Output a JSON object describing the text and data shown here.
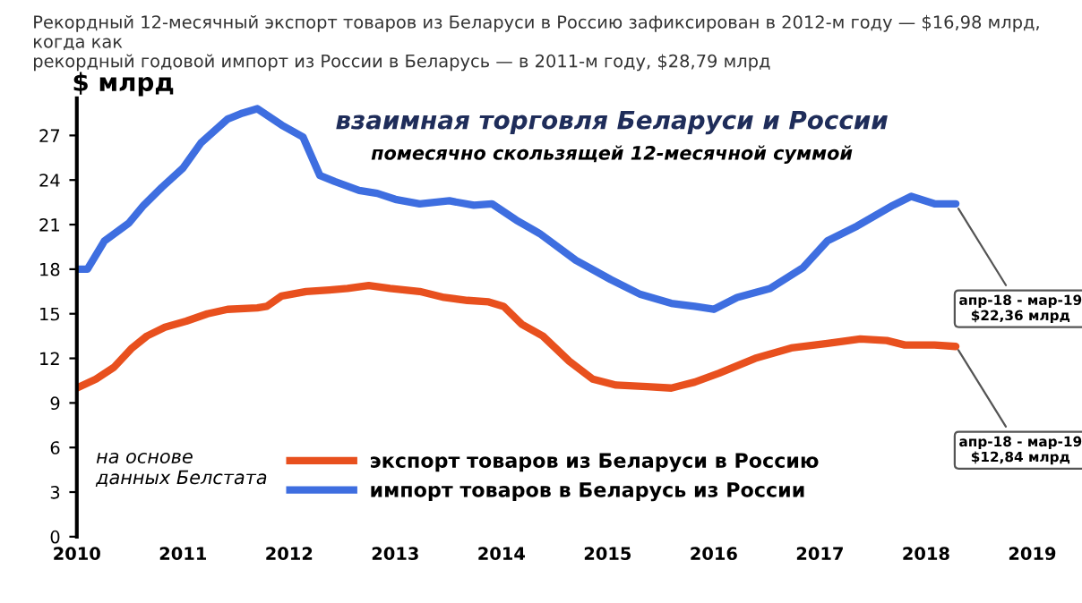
{
  "chart_data": {
    "type": "line",
    "title": "взаимная торговля Беларуси и России",
    "subtitle": "помесячно скользящей 12-месячной суммой",
    "ylabel": "$ млрд",
    "xlim": [
      2010,
      2019
    ],
    "xticks": [
      2010,
      2011,
      2012,
      2013,
      2014,
      2015,
      2016,
      2017,
      2018,
      2019
    ],
    "ylim": [
      0,
      29.5
    ],
    "yticks": [
      0,
      3,
      6,
      9,
      12,
      15,
      18,
      21,
      24,
      27
    ],
    "grid": false,
    "legend": "bottom",
    "marker": "none",
    "line_style": "solid",
    "series": [
      {
        "name": "экспорт товаров из Беларуси в Россию",
        "color": "#e8501e",
        "x": [
          2010.0,
          2010.18,
          2010.35,
          2010.52,
          2010.66,
          2010.83,
          2011.03,
          2011.23,
          2011.42,
          2011.7,
          2011.79,
          2011.93,
          2012.16,
          2012.38,
          2012.55,
          2012.75,
          2012.95,
          2013.23,
          2013.46,
          2013.68,
          2013.88,
          2014.02,
          2014.19,
          2014.39,
          2014.64,
          2014.86,
          2015.08,
          2015.37,
          2015.6,
          2015.82,
          2016.05,
          2016.39,
          2016.73,
          2017.07,
          2017.38,
          2017.63,
          2017.8,
          2018.08,
          2018.28
        ],
        "values": [
          10.0,
          10.6,
          11.4,
          12.7,
          13.5,
          14.1,
          14.5,
          15.0,
          15.3,
          15.4,
          15.5,
          16.2,
          16.5,
          16.6,
          16.7,
          16.9,
          16.7,
          16.5,
          16.1,
          15.9,
          15.8,
          15.5,
          14.3,
          13.5,
          11.8,
          10.6,
          10.2,
          10.1,
          10.0,
          10.4,
          11.0,
          12.0,
          12.7,
          13.0,
          13.3,
          13.2,
          12.9,
          12.9,
          12.8
        ]
      },
      {
        "name": "импорт товаров в Беларусь из России",
        "color": "#3e6ee0",
        "x": [
          2010.0,
          2010.1,
          2010.26,
          2010.49,
          2010.63,
          2010.8,
          2011.0,
          2011.17,
          2011.42,
          2011.56,
          2011.7,
          2011.93,
          2012.13,
          2012.29,
          2012.43,
          2012.66,
          2012.83,
          2013.0,
          2013.23,
          2013.51,
          2013.74,
          2013.91,
          2014.14,
          2014.36,
          2014.7,
          2015.03,
          2015.31,
          2015.6,
          2015.82,
          2016.0,
          2016.22,
          2016.53,
          2016.84,
          2017.07,
          2017.35,
          2017.69,
          2017.86,
          2018.08,
          2018.28
        ],
        "values": [
          18.0,
          18.0,
          19.9,
          21.1,
          22.3,
          23.5,
          24.8,
          26.5,
          28.1,
          28.5,
          28.8,
          27.7,
          26.9,
          24.3,
          23.9,
          23.3,
          23.1,
          22.7,
          22.4,
          22.6,
          22.3,
          22.4,
          21.3,
          20.4,
          18.6,
          17.3,
          16.3,
          15.7,
          15.5,
          15.3,
          16.1,
          16.7,
          18.1,
          19.9,
          20.9,
          22.3,
          22.9,
          22.4,
          22.4
        ]
      }
    ],
    "annotations": [
      "Рекордный 12-месячный экспорт товаров из Беларуси в Россию зафиксирован в 2012-м году — $16,98 млрд, когда как\nрекордный годовой импорт из России в Беларусь — в 2011-м году, $28,79 млрд",
      "на основе\nданных Белстата",
      {
        "text": "апр-18 - мар-19\n$22,36 млрд",
        "x": 2018.28,
        "y": 22.36
      },
      {
        "text": "апр-18 - мар-19\n$12,84 млрд",
        "x": 2018.28,
        "y": 12.84
      }
    ]
  }
}
